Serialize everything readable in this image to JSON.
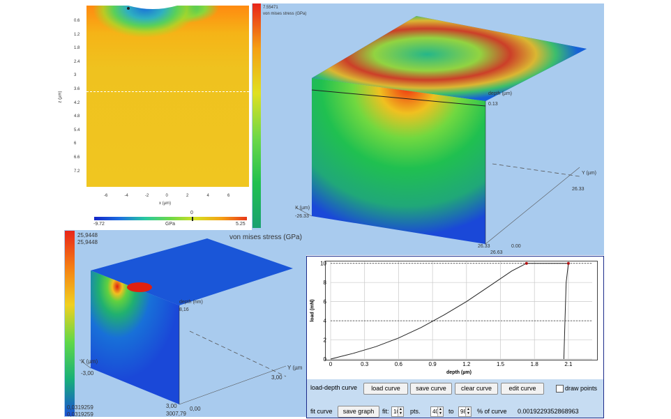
{
  "panel_2d": {
    "z_label": "z (µm)",
    "x_label": "x (µm)",
    "z_ticks": [
      "0.6",
      "1.2",
      "1.8",
      "2.4",
      "3",
      "3.6",
      "4.2",
      "4.8",
      "5.4",
      "6",
      "6.6",
      "7.2"
    ],
    "x_ticks": [
      "-6",
      "-4",
      "-2",
      "0",
      "2",
      "4",
      "6"
    ],
    "bar_min": "-9.72",
    "bar_unit": "GPa",
    "bar_max": "5.25",
    "bar_marker": "0"
  },
  "panel_3d_top": {
    "max_value": "7.55471",
    "title": "von mises stress (GPa)",
    "depth_label": "depth (µm)",
    "depth_value": "0.13",
    "x_label": "X (µm)",
    "x_value": "-26.33",
    "y_label": "Y (µm)",
    "y_value": "26.33",
    "corner_a": "26.33",
    "corner_b": "0.00",
    "corner_c": "26.63"
  },
  "panel_3d_bottom": {
    "max_value_1": "25,9448",
    "max_value_2": "25,9448",
    "title": "von mises stress (GPa)",
    "depth_label": "depth (nm)",
    "depth_value": "8,16",
    "x_label": "X (µm)",
    "x_value": "-3,00",
    "y_label": "Y (µm",
    "y_value": "3,00",
    "corner_a": "3,00",
    "corner_b": "0,00",
    "corner_c": "3007,79",
    "min_value_1": "0,0319259",
    "min_value_2": "0,0319259"
  },
  "load_depth": {
    "curve_label": "load-depth curve",
    "load_btn": "load curve",
    "save_btn": "save curve",
    "clear_btn": "clear curve",
    "edit_btn": "edit curve",
    "draw_points": "draw points",
    "fit_label": "fit curve",
    "save_graph": "save graph",
    "fit_text": "fit:",
    "fit_pts": "10",
    "pts_text": "pts.",
    "from_pct": "40",
    "to_text": "to",
    "to_pct": "98",
    "pct_text": "% of curve",
    "result": "0.0019229352868963"
  },
  "colors": {
    "panel_blue": "#a9cbee",
    "bar_bg": "#c6dcf2"
  },
  "chart_data": {
    "type": "line",
    "xlabel": "depth (µm)",
    "ylabel": "load (mN)",
    "xlim": [
      0,
      2.31
    ],
    "ylim": [
      0,
      10.2
    ],
    "x_ticks": [
      "0",
      "0.3",
      "0.6",
      "0.9",
      "1.2",
      "1.5",
      "1.8",
      "2.1"
    ],
    "y_ticks": [
      "0",
      "2",
      "4",
      "6",
      "8",
      "10"
    ],
    "grid": true,
    "series": [
      {
        "values": [
          [
            0,
            0
          ],
          [
            0.2,
            0.6
          ],
          [
            0.4,
            1.3
          ],
          [
            0.6,
            2.2
          ],
          [
            0.8,
            3.3
          ],
          [
            1.0,
            4.6
          ],
          [
            1.2,
            6.0
          ],
          [
            1.4,
            7.6
          ],
          [
            1.6,
            9.2
          ],
          [
            1.73,
            10.0
          ],
          [
            2.1,
            10.0
          ],
          [
            2.08,
            8.0
          ],
          [
            2.07,
            4.0
          ],
          [
            2.06,
            0
          ]
        ]
      }
    ],
    "reference_lines_y": [
      10.0,
      4.0
    ],
    "markers": [
      [
        1.73,
        10.0
      ],
      [
        2.1,
        10.0
      ]
    ]
  }
}
